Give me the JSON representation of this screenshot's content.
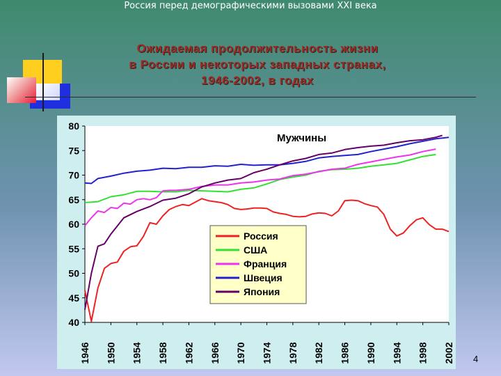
{
  "header": {
    "text": "Россия перед демографическими вызовами XXI века"
  },
  "slide": {
    "title_lines": [
      "Ожидаемая продолжительность жизни",
      "в России и некоторых западных странах,",
      "1946-2002, в годах"
    ],
    "page_number": "4"
  },
  "chart_data": {
    "type": "line",
    "title": "Мужчины",
    "xlabel": "",
    "ylabel": "",
    "ylim": [
      40,
      80
    ],
    "xlim": [
      1946,
      2002
    ],
    "yticks": [
      40,
      45,
      50,
      55,
      60,
      65,
      70,
      75,
      80
    ],
    "xticks": [
      1946,
      1950,
      1954,
      1958,
      1962,
      1966,
      1970,
      1974,
      1978,
      1982,
      1986,
      1990,
      1994,
      1998,
      2002
    ],
    "grid": false,
    "legend_position": "bottom-center",
    "series": [
      {
        "name": "Россия",
        "color": "#ee2222",
        "x": [
          1946,
          1947,
          1948,
          1949,
          1950,
          1951,
          1952,
          1953,
          1954,
          1955,
          1956,
          1957,
          1958,
          1959,
          1960,
          1961,
          1962,
          1963,
          1964,
          1965,
          1966,
          1967,
          1968,
          1969,
          1970,
          1971,
          1972,
          1973,
          1974,
          1975,
          1976,
          1977,
          1978,
          1979,
          1980,
          1981,
          1982,
          1983,
          1984,
          1985,
          1986,
          1987,
          1988,
          1989,
          1990,
          1991,
          1992,
          1993,
          1994,
          1995,
          1996,
          1997,
          1998,
          1999,
          2000,
          2001,
          2002
        ],
        "y": [
          46.5,
          40.2,
          47.0,
          51.0,
          52.0,
          52.3,
          54.5,
          55.4,
          55.6,
          57.5,
          60.3,
          60.0,
          61.7,
          63.0,
          63.6,
          64.0,
          63.8,
          64.5,
          65.2,
          64.8,
          64.6,
          64.4,
          64.0,
          63.2,
          63.0,
          63.1,
          63.3,
          63.3,
          63.2,
          62.5,
          62.2,
          62.0,
          61.6,
          61.5,
          61.6,
          62.1,
          62.3,
          62.2,
          61.7,
          62.7,
          64.8,
          64.9,
          64.8,
          64.2,
          63.8,
          63.5,
          62.0,
          59.0,
          57.6,
          58.2,
          59.7,
          60.9,
          61.3,
          59.9,
          59.0,
          59.0,
          58.5
        ]
      },
      {
        "name": "США",
        "color": "#33e033",
        "x": [
          1946,
          1948,
          1950,
          1952,
          1954,
          1956,
          1958,
          1960,
          1962,
          1964,
          1966,
          1968,
          1970,
          1972,
          1974,
          1976,
          1978,
          1980,
          1982,
          1984,
          1986,
          1988,
          1990,
          1992,
          1994,
          1996,
          1998,
          2000
        ],
        "y": [
          64.4,
          64.6,
          65.6,
          66.0,
          66.7,
          66.7,
          66.6,
          66.6,
          66.9,
          66.8,
          66.7,
          66.6,
          67.1,
          67.4,
          68.2,
          69.1,
          69.6,
          70.0,
          70.8,
          71.1,
          71.2,
          71.4,
          71.8,
          72.1,
          72.4,
          73.1,
          73.8,
          74.2
        ]
      },
      {
        "name": "Франция",
        "color": "#ee33ee",
        "x": [
          1946,
          1947,
          1948,
          1949,
          1950,
          1951,
          1952,
          1953,
          1954,
          1955,
          1956,
          1957,
          1958,
          1959,
          1960,
          1962,
          1964,
          1966,
          1968,
          1970,
          1972,
          1974,
          1976,
          1978,
          1980,
          1982,
          1984,
          1986,
          1988,
          1990,
          1992,
          1994,
          1996,
          1998,
          2000
        ],
        "y": [
          59.7,
          61.3,
          62.7,
          62.4,
          63.4,
          63.2,
          64.3,
          64.1,
          65.0,
          65.2,
          65.0,
          65.4,
          66.8,
          66.9,
          66.9,
          67.1,
          67.7,
          68.0,
          68.0,
          68.4,
          68.6,
          69.0,
          69.2,
          69.9,
          70.2,
          70.7,
          71.2,
          71.4,
          72.2,
          72.7,
          73.2,
          73.7,
          74.1,
          74.8,
          75.3
        ]
      },
      {
        "name": "Швеция",
        "color": "#2222cc",
        "x": [
          1946,
          1947,
          1948,
          1950,
          1952,
          1954,
          1956,
          1958,
          1960,
          1962,
          1964,
          1966,
          1968,
          1970,
          1972,
          1974,
          1976,
          1978,
          1980,
          1982,
          1984,
          1986,
          1988,
          1990,
          1992,
          1994,
          1996,
          1998,
          2000,
          2002
        ],
        "y": [
          68.4,
          68.3,
          69.3,
          69.8,
          70.4,
          70.8,
          71.0,
          71.4,
          71.3,
          71.6,
          71.6,
          71.9,
          71.8,
          72.2,
          72.0,
          72.1,
          72.1,
          72.4,
          72.8,
          73.5,
          73.8,
          74.0,
          74.2,
          74.8,
          75.3,
          75.8,
          76.4,
          76.9,
          77.4,
          77.7
        ]
      },
      {
        "name": "Япония",
        "color": "#660066",
        "x": [
          1946,
          1947,
          1948,
          1949,
          1950,
          1952,
          1954,
          1956,
          1958,
          1960,
          1962,
          1964,
          1966,
          1968,
          1970,
          1972,
          1974,
          1976,
          1978,
          1980,
          1982,
          1984,
          1986,
          1988,
          1990,
          1992,
          1994,
          1996,
          1998,
          2000,
          2001
        ],
        "y": [
          42.6,
          50.0,
          55.5,
          56.0,
          58.0,
          61.3,
          62.6,
          63.6,
          64.9,
          65.3,
          66.2,
          67.6,
          68.4,
          69.0,
          69.3,
          70.5,
          71.2,
          72.1,
          72.9,
          73.4,
          74.2,
          74.5,
          75.2,
          75.6,
          75.9,
          76.1,
          76.6,
          77.0,
          77.2,
          77.7,
          78.1
        ]
      }
    ]
  }
}
